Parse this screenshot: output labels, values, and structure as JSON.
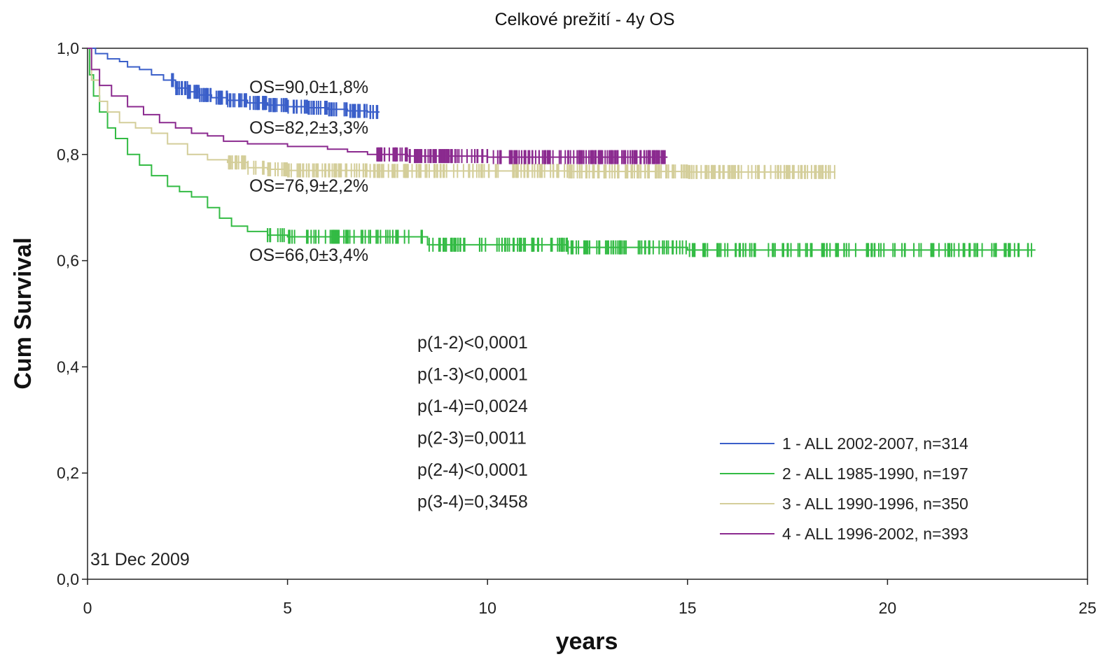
{
  "chart_data": {
    "type": "line",
    "title": "Celkové prežití - 4y OS",
    "xlabel": "years",
    "ylabel": "Cum Survival",
    "xlim": [
      0,
      25
    ],
    "ylim": [
      0.0,
      1.0
    ],
    "x_ticks": [
      0,
      5,
      10,
      15,
      20,
      25
    ],
    "x_tick_labels": [
      "0",
      "5",
      "10",
      "15",
      "20",
      "25"
    ],
    "y_ticks": [
      0.0,
      0.2,
      0.4,
      0.6,
      0.8,
      1.0
    ],
    "y_tick_labels": [
      "0,0",
      "0,2",
      "0,4",
      "0,6",
      "0,8",
      "1,0"
    ],
    "grid": false,
    "legend_position": "bottom-right",
    "date_note": "31 Dec 2009",
    "series": [
      {
        "name": "1 - ALL 2002-2007, n=314",
        "color": "#3a5fc9",
        "points": [
          [
            0,
            1.0
          ],
          [
            0.2,
            0.99
          ],
          [
            0.5,
            0.98
          ],
          [
            0.8,
            0.975
          ],
          [
            1.0,
            0.965
          ],
          [
            1.3,
            0.96
          ],
          [
            1.6,
            0.95
          ],
          [
            1.9,
            0.94
          ],
          [
            2.2,
            0.925
          ],
          [
            2.5,
            0.918
          ],
          [
            2.8,
            0.912
          ],
          [
            3.1,
            0.907
          ],
          [
            3.5,
            0.902
          ],
          [
            4.0,
            0.897
          ],
          [
            4.5,
            0.893
          ],
          [
            5.0,
            0.89
          ],
          [
            5.5,
            0.888
          ],
          [
            6.0,
            0.885
          ],
          [
            6.5,
            0.882
          ],
          [
            7.0,
            0.88
          ],
          [
            7.3,
            0.88
          ]
        ],
        "censor_range": [
          2.1,
          7.3
        ],
        "censor_density": 3.2,
        "os_label": "OS=90,0±1,8%"
      },
      {
        "name": "2 - ALL 1985-1990, n=197",
        "color": "#33bb44",
        "points": [
          [
            0,
            1.0
          ],
          [
            0.05,
            0.95
          ],
          [
            0.15,
            0.91
          ],
          [
            0.3,
            0.88
          ],
          [
            0.5,
            0.85
          ],
          [
            0.7,
            0.83
          ],
          [
            1.0,
            0.8
          ],
          [
            1.3,
            0.78
          ],
          [
            1.6,
            0.76
          ],
          [
            2.0,
            0.74
          ],
          [
            2.3,
            0.73
          ],
          [
            2.6,
            0.72
          ],
          [
            3.0,
            0.7
          ],
          [
            3.3,
            0.68
          ],
          [
            3.6,
            0.665
          ],
          [
            4.0,
            0.655
          ],
          [
            4.5,
            0.648
          ],
          [
            5.0,
            0.645
          ],
          [
            6.0,
            0.645
          ],
          [
            7.0,
            0.645
          ],
          [
            8.0,
            0.645
          ],
          [
            8.5,
            0.63
          ],
          [
            9.0,
            0.63
          ],
          [
            12.0,
            0.625
          ],
          [
            15.0,
            0.62
          ],
          [
            20.0,
            0.62
          ],
          [
            23.7,
            0.62
          ]
        ],
        "censor_range": [
          4.5,
          23.7
        ],
        "censor_density": 1.5,
        "os_label": "OS=66,0±3,4%"
      },
      {
        "name": "3 - ALL 1990-1996, n=350",
        "color": "#d4ce9a",
        "points": [
          [
            0,
            1.0
          ],
          [
            0.1,
            0.94
          ],
          [
            0.3,
            0.9
          ],
          [
            0.5,
            0.88
          ],
          [
            0.8,
            0.86
          ],
          [
            1.2,
            0.85
          ],
          [
            1.6,
            0.84
          ],
          [
            2.0,
            0.82
          ],
          [
            2.5,
            0.8
          ],
          [
            3.0,
            0.79
          ],
          [
            3.5,
            0.785
          ],
          [
            4.0,
            0.775
          ],
          [
            4.5,
            0.772
          ],
          [
            5.0,
            0.77
          ],
          [
            6.0,
            0.77
          ],
          [
            7.0,
            0.769
          ],
          [
            9.0,
            0.769
          ],
          [
            12.0,
            0.768
          ],
          [
            15.0,
            0.767
          ],
          [
            18.7,
            0.767
          ]
        ],
        "censor_range": [
          3.5,
          18.7
        ],
        "censor_density": 2.2,
        "os_label": "OS=76,9±2,2%"
      },
      {
        "name": "4 - ALL 1996-2002, n=393",
        "color": "#8b2a8f",
        "points": [
          [
            0,
            1.0
          ],
          [
            0.1,
            0.96
          ],
          [
            0.3,
            0.93
          ],
          [
            0.6,
            0.91
          ],
          [
            1.0,
            0.89
          ],
          [
            1.4,
            0.875
          ],
          [
            1.8,
            0.86
          ],
          [
            2.2,
            0.85
          ],
          [
            2.6,
            0.84
          ],
          [
            3.0,
            0.835
          ],
          [
            3.4,
            0.825
          ],
          [
            4.0,
            0.82
          ],
          [
            5.0,
            0.815
          ],
          [
            6.0,
            0.81
          ],
          [
            6.5,
            0.805
          ],
          [
            7.0,
            0.8
          ],
          [
            8.0,
            0.797
          ],
          [
            10.0,
            0.795
          ],
          [
            12.0,
            0.795
          ],
          [
            14.5,
            0.795
          ]
        ],
        "censor_range": [
          7.2,
          14.5
        ],
        "censor_density": 3.0,
        "os_label": "OS=82,2±3,3%"
      }
    ],
    "p_values": [
      "p(1-2)<0,0001",
      "p(1-3)<0,0001",
      "p(1-4)=0,0024",
      "p(2-3)=0,0011",
      "p(2-4)<0,0001",
      "p(3-4)=0,3458"
    ]
  }
}
